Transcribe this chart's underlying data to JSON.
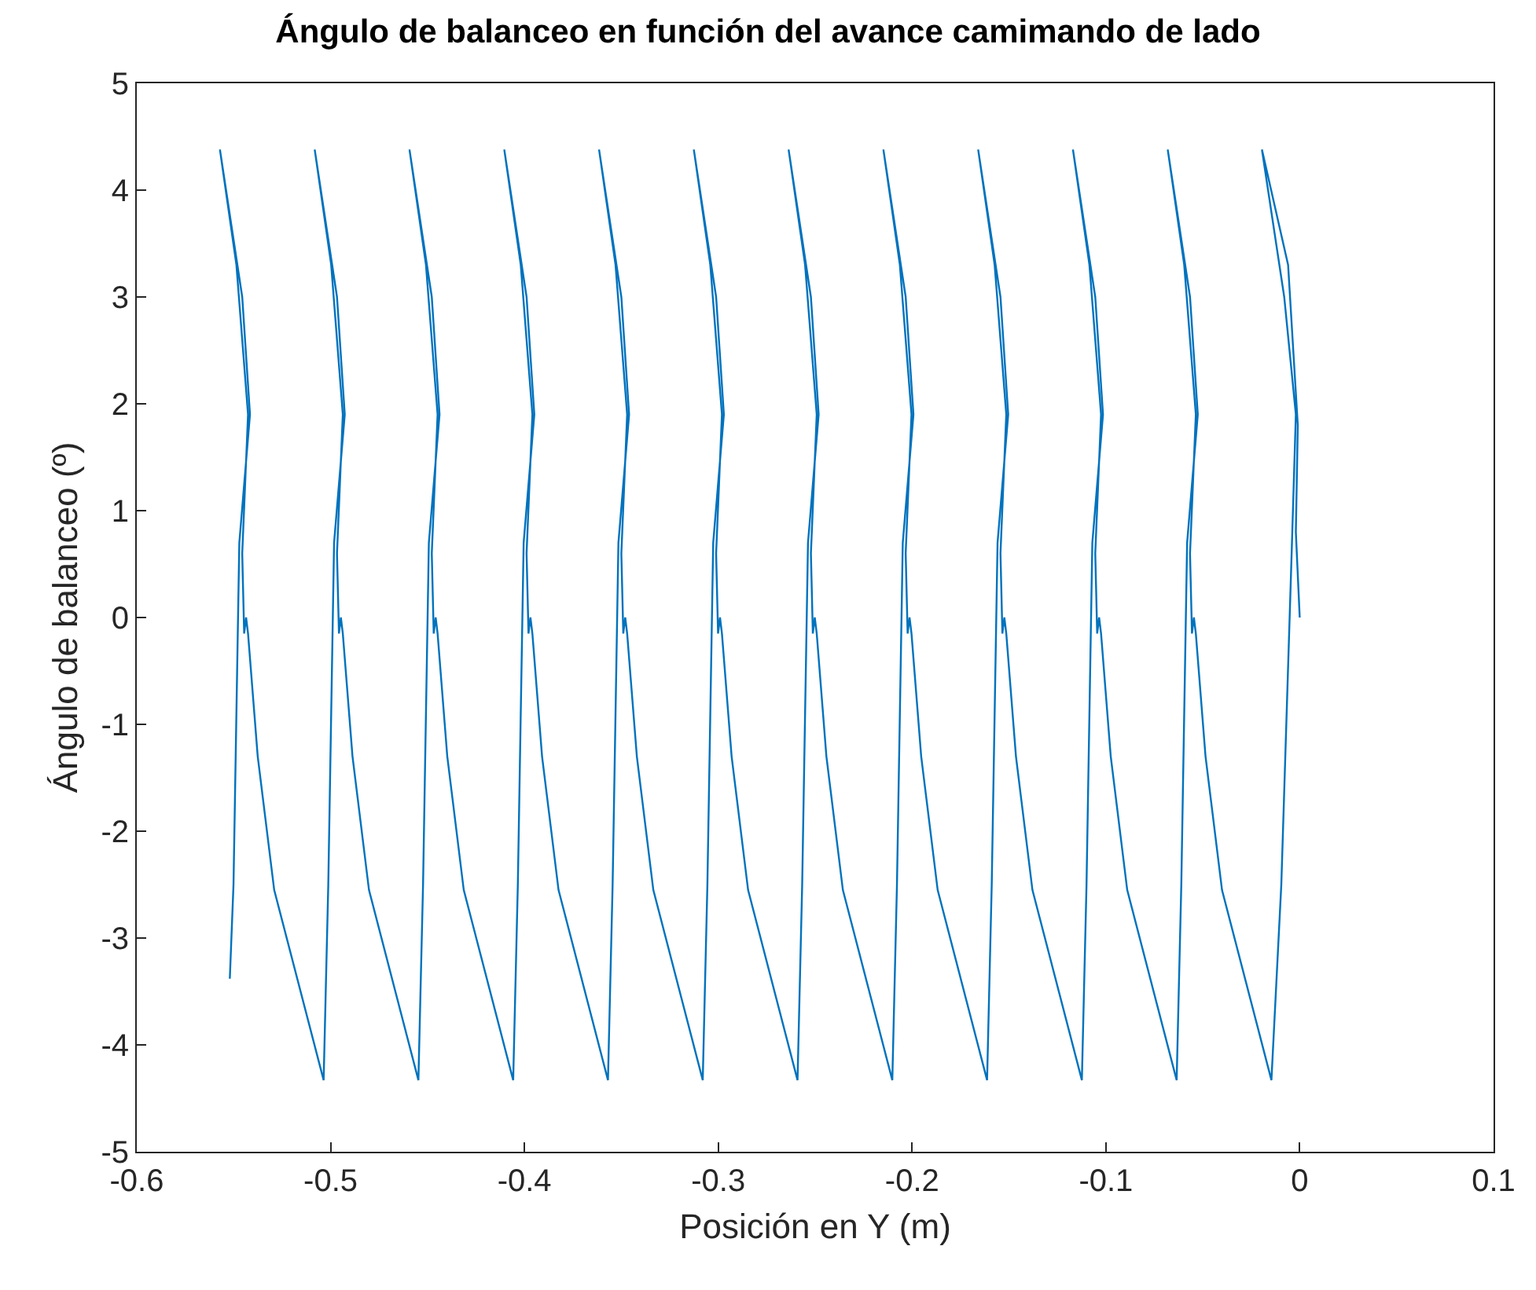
{
  "chart_data": {
    "type": "line",
    "title": "Ángulo de balanceo en función del avance camimando de lado",
    "xlabel": "Posición en Y (m)",
    "ylabel": "Ángulo de balanceo (º)",
    "xlim": [
      -0.6,
      0.1
    ],
    "xticks": [
      -0.6,
      -0.5,
      -0.4,
      -0.3,
      -0.2,
      -0.1,
      0,
      0.1
    ],
    "ylim": [
      -5,
      5
    ],
    "yticks": [
      -5,
      -4,
      -3,
      -2,
      -1,
      0,
      1,
      2,
      3,
      4,
      5
    ],
    "line_style": "solid",
    "series": [
      {
        "color": "#0072bd",
        "x": [
          0,
          -0.002,
          -0.001,
          -0.006,
          -0.0195,
          -0.008,
          -0.002,
          -0.004,
          -0.0095,
          -0.0146,
          -0.0401,
          -0.0486,
          -0.0536,
          -0.0546,
          -0.0556,
          -0.0566,
          -0.0536,
          -0.0596,
          -0.0681,
          -0.0566,
          -0.0526,
          -0.0581,
          -0.0611,
          -0.0635,
          -0.089,
          -0.0975,
          -0.1025,
          -0.1035,
          -0.1045,
          -0.1055,
          -0.1025,
          -0.1085,
          -0.117,
          -0.1055,
          -0.1015,
          -0.107,
          -0.11,
          -0.1124,
          -0.1379,
          -0.1464,
          -0.1514,
          -0.1524,
          -0.1534,
          -0.1544,
          -0.1514,
          -0.1574,
          -0.1659,
          -0.1544,
          -0.1504,
          -0.1559,
          -0.1589,
          -0.1613,
          -0.1868,
          -0.1953,
          -0.2003,
          -0.2013,
          -0.2023,
          -0.2033,
          -0.2003,
          -0.2063,
          -0.2148,
          -0.2033,
          -0.1993,
          -0.2048,
          -0.2078,
          -0.2102,
          -0.2357,
          -0.2442,
          -0.2492,
          -0.2502,
          -0.2512,
          -0.2522,
          -0.2492,
          -0.2552,
          -0.2637,
          -0.2522,
          -0.2482,
          -0.2537,
          -0.2567,
          -0.2591,
          -0.2846,
          -0.2931,
          -0.2981,
          -0.2991,
          -0.3001,
          -0.3011,
          -0.2981,
          -0.3041,
          -0.3126,
          -0.3011,
          -0.2971,
          -0.3026,
          -0.3056,
          -0.308,
          -0.3335,
          -0.342,
          -0.347,
          -0.348,
          -0.349,
          -0.35,
          -0.347,
          -0.353,
          -0.3615,
          -0.35,
          -0.346,
          -0.3515,
          -0.3545,
          -0.3569,
          -0.3824,
          -0.3909,
          -0.3959,
          -0.3969,
          -0.3979,
          -0.3989,
          -0.3959,
          -0.4019,
          -0.4104,
          -0.3989,
          -0.3949,
          -0.4004,
          -0.4034,
          -0.4058,
          -0.4313,
          -0.4398,
          -0.4448,
          -0.4458,
          -0.4468,
          -0.4478,
          -0.4448,
          -0.4508,
          -0.4593,
          -0.4478,
          -0.4438,
          -0.4493,
          -0.4523,
          -0.4547,
          -0.4802,
          -0.4887,
          -0.4937,
          -0.4947,
          -0.4957,
          -0.4967,
          -0.4937,
          -0.4997,
          -0.5082,
          -0.4967,
          -0.4927,
          -0.4982,
          -0.5012,
          -0.5036,
          -0.5291,
          -0.5376,
          -0.5426,
          -0.5436,
          -0.5446,
          -0.5456,
          -0.5426,
          -0.5486,
          -0.5571,
          -0.5456,
          -0.5416,
          -0.5471,
          -0.5501,
          -0.552
        ],
        "values": [
          0,
          0.8,
          1.8,
          3.3,
          4.38,
          3.0,
          1.9,
          0.7,
          -2.5,
          -4.33,
          -2.55,
          -1.3,
          -0.15,
          0,
          -0.15,
          0.6,
          1.9,
          3.3,
          4.38,
          3.0,
          1.9,
          0.7,
          -2.5,
          -4.33,
          -2.55,
          -1.3,
          -0.15,
          0,
          -0.15,
          0.6,
          1.9,
          3.3,
          4.38,
          3.0,
          1.9,
          0.7,
          -2.5,
          -4.33,
          -2.55,
          -1.3,
          -0.15,
          0,
          -0.15,
          0.6,
          1.9,
          3.3,
          4.38,
          3.0,
          1.9,
          0.7,
          -2.5,
          -4.33,
          -2.55,
          -1.3,
          -0.15,
          0,
          -0.15,
          0.6,
          1.9,
          3.3,
          4.38,
          3.0,
          1.9,
          0.7,
          -2.5,
          -4.33,
          -2.55,
          -1.3,
          -0.15,
          0,
          -0.15,
          0.6,
          1.9,
          3.3,
          4.38,
          3.0,
          1.9,
          0.7,
          -2.5,
          -4.33,
          -2.55,
          -1.3,
          -0.15,
          0,
          -0.15,
          0.6,
          1.9,
          3.3,
          4.38,
          3.0,
          1.9,
          0.7,
          -2.5,
          -4.33,
          -2.55,
          -1.3,
          -0.15,
          0,
          -0.15,
          0.6,
          1.9,
          3.3,
          4.38,
          3.0,
          1.9,
          0.7,
          -2.5,
          -4.33,
          -2.55,
          -1.3,
          -0.15,
          0,
          -0.15,
          0.6,
          1.9,
          3.3,
          4.38,
          3.0,
          1.9,
          0.7,
          -2.5,
          -4.33,
          -2.55,
          -1.3,
          -0.15,
          0,
          -0.15,
          0.6,
          1.9,
          3.3,
          4.38,
          3.0,
          1.9,
          0.7,
          -2.5,
          -4.33,
          -2.55,
          -1.3,
          -0.15,
          0,
          -0.15,
          0.6,
          1.9,
          3.3,
          4.38,
          3.0,
          1.9,
          0.7,
          -2.5,
          -4.33,
          -2.55,
          -1.3,
          -0.15,
          0,
          -0.15,
          0.6,
          1.9,
          3.3,
          4.38,
          3.0,
          1.9,
          0.7,
          -2.5,
          -3.38
        ]
      }
    ]
  }
}
